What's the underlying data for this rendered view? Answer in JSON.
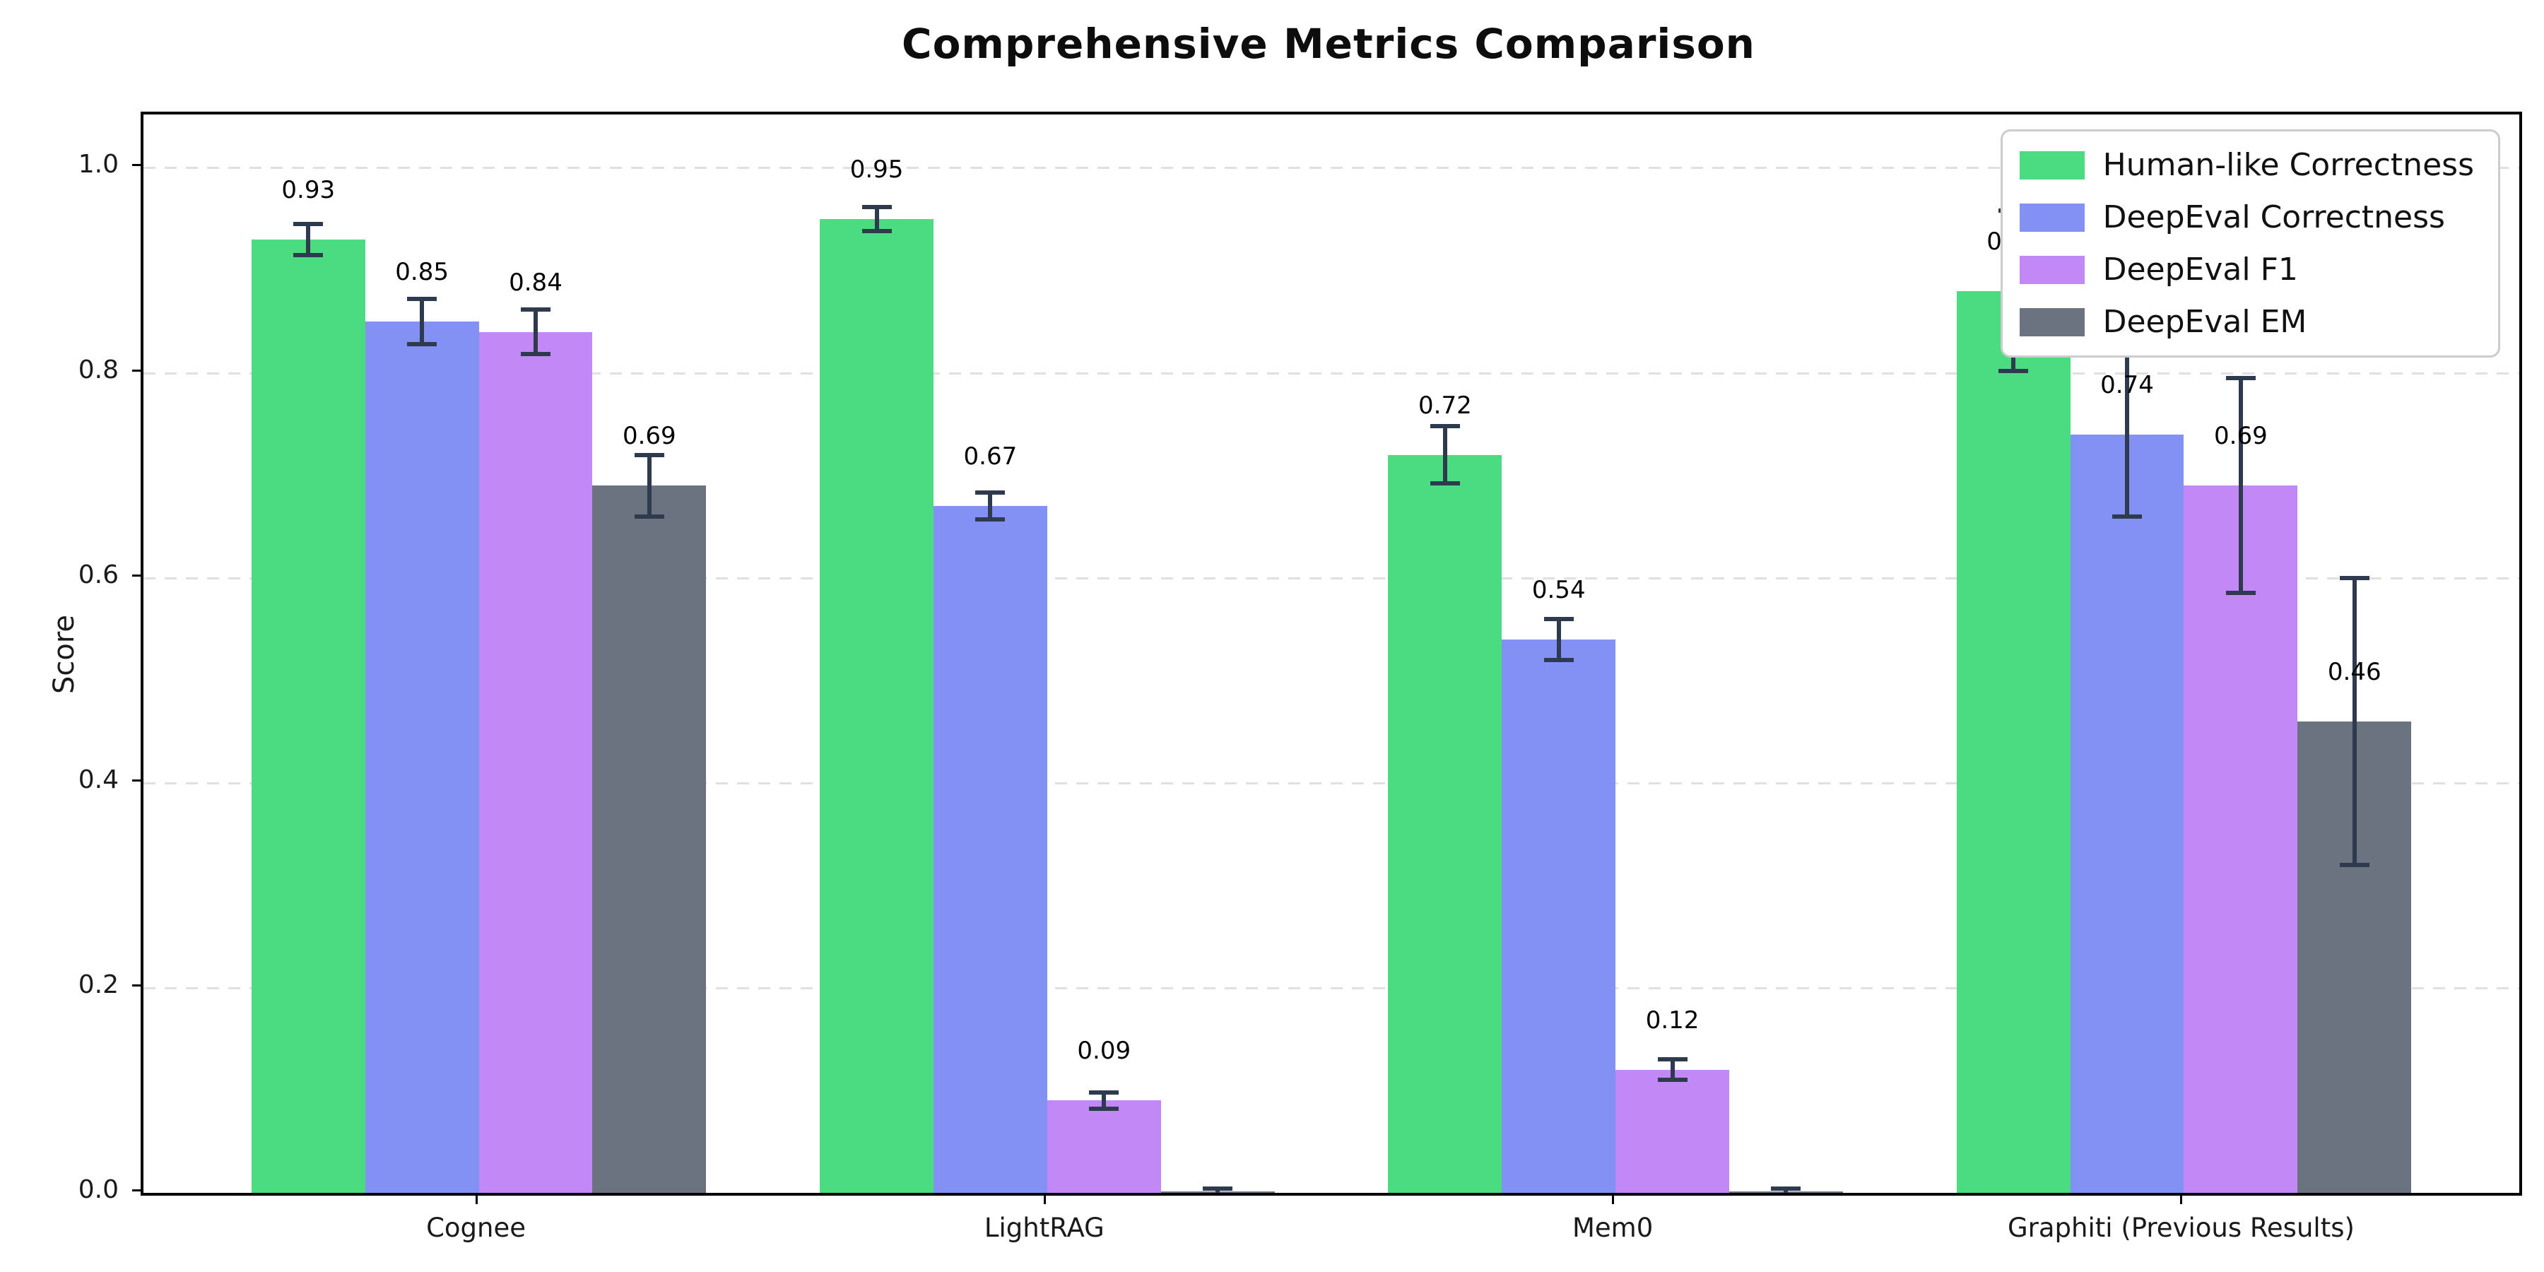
{
  "chart_data": {
    "type": "bar",
    "title": "Comprehensive Metrics Comparison",
    "ylabel": "Score",
    "xlabel": "",
    "categories": [
      "Cognee",
      "LightRAG",
      "Mem0",
      "Graphiti (Previous Results)"
    ],
    "series": [
      {
        "name": "Human-like Correctness",
        "color": "#4bdb81",
        "values": [
          0.93,
          0.95,
          0.72,
          0.88
        ],
        "errors": [
          0.015,
          0.012,
          0.028,
          0.078
        ],
        "labels": [
          "0.93",
          "0.95",
          "0.72",
          "0.88"
        ]
      },
      {
        "name": "DeepEval Correctness",
        "color": "#8390f4",
        "values": [
          0.85,
          0.67,
          0.54,
          0.74
        ],
        "errors": [
          0.022,
          0.013,
          0.02,
          0.08
        ],
        "labels": [
          "0.85",
          "0.67",
          "0.54",
          "0.74"
        ]
      },
      {
        "name": "DeepEval F1",
        "color": "#c289f6",
        "values": [
          0.84,
          0.09,
          0.12,
          0.69
        ],
        "errors": [
          0.022,
          0.008,
          0.01,
          0.105
        ],
        "labels": [
          "0.84",
          "0.09",
          "0.12",
          "0.69"
        ]
      },
      {
        "name": "DeepEval EM",
        "color": "#6b7280",
        "values": [
          0.69,
          0.0,
          0.0,
          0.46
        ],
        "errors": [
          0.03,
          0.004,
          0.004,
          0.14
        ],
        "labels": [
          "0.69",
          "",
          "",
          "0.46"
        ]
      }
    ],
    "y_ticks": [
      "0.0",
      "0.2",
      "0.4",
      "0.6",
      "0.8",
      "1.0"
    ],
    "ylim": [
      0,
      1.052
    ],
    "grid": "horizontal-dashed",
    "legend_position": "upper-right",
    "colors": {
      "error_bar": "#2e3a4d",
      "grid": "#e0e0e0",
      "spine": "#000000",
      "background": "#ffffff"
    }
  }
}
